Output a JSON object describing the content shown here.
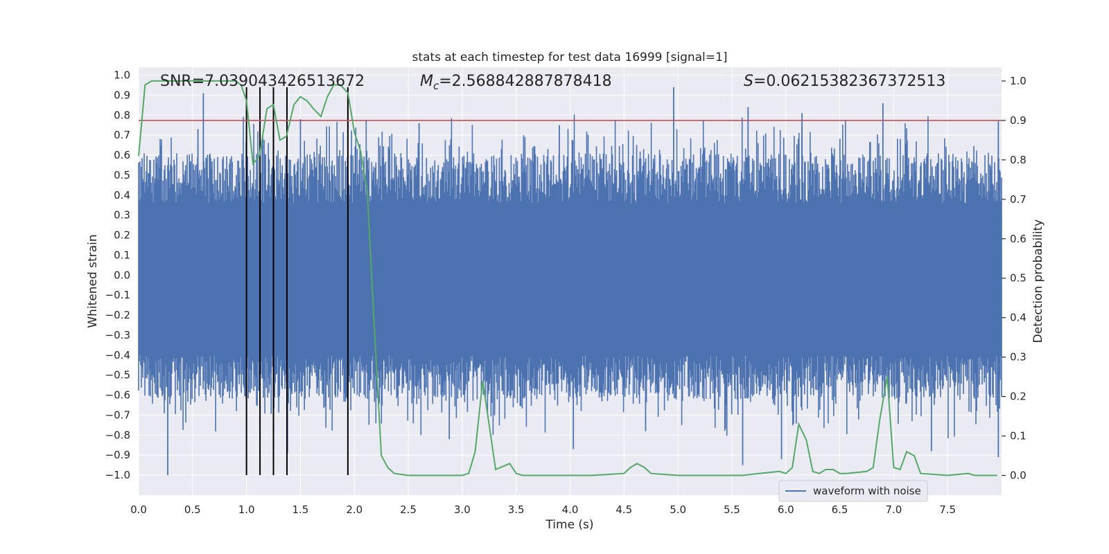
{
  "chart_data": {
    "type": "line",
    "title": "stats at each timestep for test data 16999 [signal=1]",
    "xlabel": "Time (s)",
    "ylabel": "Whitened strain",
    "y2label": "Detection probability",
    "xlim": [
      0.0,
      8.0
    ],
    "ylim": [
      -1.1,
      1.04
    ],
    "y2lim": [
      -0.05,
      1.035
    ],
    "xticks": [
      0.0,
      0.5,
      1.0,
      1.5,
      2.0,
      2.5,
      3.0,
      3.5,
      4.0,
      4.5,
      5.0,
      5.5,
      6.0,
      6.5,
      7.0,
      7.5
    ],
    "xtick_labels": [
      "0.0",
      "0.5",
      "1.0",
      "1.5",
      "2.0",
      "2.5",
      "3.0",
      "3.5",
      "4.0",
      "4.5",
      "5.0",
      "5.5",
      "6.0",
      "6.5",
      "7.0",
      "7.5"
    ],
    "yticks": [
      1.0,
      0.9,
      0.8,
      0.7,
      0.6,
      0.5,
      0.4,
      0.3,
      0.2,
      0.1,
      0.0,
      -0.1,
      -0.2,
      -0.3,
      -0.4,
      -0.5,
      -0.6,
      -0.7,
      -0.8,
      -0.9,
      -1.0
    ],
    "ytick_labels": [
      "1.0",
      "0.9",
      "0.8",
      "0.7",
      "0.6",
      "0.5",
      "0.4",
      "0.3",
      "0.2",
      "0.1",
      "0.0",
      "−0.1",
      "−0.2",
      "−0.3",
      "−0.4",
      "−0.5",
      "−0.6",
      "−0.7",
      "−0.8",
      "−0.9",
      "−1.0"
    ],
    "y2ticks": [
      1.0,
      0.9,
      0.8,
      0.7,
      0.6,
      0.5,
      0.4,
      0.3,
      0.2,
      0.1,
      0.0
    ],
    "y2tick_labels": [
      "1.0",
      "0.9",
      "0.8",
      "0.7",
      "0.6",
      "0.5",
      "0.4",
      "0.3",
      "0.2",
      "0.1",
      "0.0"
    ],
    "annotations": {
      "snr": "SNR=7.039043426513672",
      "mc_symbol": "M",
      "mc_sub": "c",
      "mc_value": "=2.568842887878418",
      "s_symbol": "S",
      "s_value": "=0.06215382367372513"
    },
    "legend": {
      "label": "waveform with noise",
      "position": "lower-right"
    },
    "threshold": 0.9,
    "event_lines": [
      1.0,
      1.125,
      1.25,
      1.375,
      1.94
    ],
    "event_line_range": [
      -1.0,
      0.94
    ],
    "waveform": {
      "name": "waveform with noise",
      "t_start": 0.0,
      "t_end": 8.0,
      "envelope_max": 0.36,
      "envelope_min": -0.4,
      "spikes": [
        [
          0.27,
          -1.0
        ],
        [
          0.6,
          0.91
        ],
        [
          1.38,
          -0.89
        ],
        [
          2.88,
          -0.82
        ],
        [
          4.03,
          -0.87
        ],
        [
          4.96,
          0.94
        ],
        [
          5.6,
          -0.95
        ],
        [
          5.65,
          0.84
        ],
        [
          5.96,
          -0.92
        ],
        [
          6.9,
          0.86
        ],
        [
          7.35,
          -0.88
        ],
        [
          7.97,
          0.77
        ],
        [
          7.97,
          -0.91
        ],
        [
          3.9,
          0.75
        ],
        [
          2.6,
          0.76
        ],
        [
          1.5,
          0.78
        ],
        [
          6.15,
          0.81
        ],
        [
          0.55,
          0.73
        ],
        [
          3.3,
          -0.7
        ],
        [
          4.7,
          -0.78
        ]
      ]
    },
    "detection_probability": {
      "x": [
        0.0,
        0.06,
        0.12,
        0.2,
        0.3,
        0.5,
        0.7,
        0.9,
        0.95,
        1.0,
        1.06,
        1.12,
        1.19,
        1.25,
        1.31,
        1.37,
        1.44,
        1.5,
        1.56,
        1.62,
        1.69,
        1.75,
        1.81,
        1.87,
        1.94,
        2.0,
        2.06,
        2.12,
        2.18,
        2.25,
        2.31,
        2.37,
        2.5,
        2.8,
        3.0,
        3.06,
        3.12,
        3.19,
        3.31,
        3.44,
        3.5,
        3.56,
        3.8,
        4.2,
        4.5,
        4.56,
        4.62,
        4.69,
        4.75,
        5.0,
        5.2,
        5.6,
        5.75,
        5.94,
        6.0,
        6.06,
        6.12,
        6.19,
        6.25,
        6.31,
        6.37,
        6.44,
        6.5,
        6.56,
        6.75,
        6.81,
        6.87,
        6.94,
        7.0,
        7.06,
        7.12,
        7.19,
        7.25,
        7.5,
        7.69,
        7.75,
        7.96
      ],
      "y": [
        0.81,
        0.99,
        1.0,
        1.0,
        1.0,
        1.0,
        1.0,
        1.0,
        0.99,
        0.95,
        0.79,
        0.81,
        0.93,
        0.94,
        0.85,
        0.86,
        0.94,
        0.96,
        0.95,
        0.93,
        0.91,
        0.96,
        0.99,
        0.99,
        0.97,
        0.87,
        0.82,
        0.72,
        0.4,
        0.05,
        0.02,
        0.005,
        0.0,
        0.0,
        0.0,
        0.005,
        0.06,
        0.24,
        0.015,
        0.03,
        0.005,
        0.0,
        0.0,
        0.0,
        0.005,
        0.02,
        0.03,
        0.02,
        0.005,
        0.0,
        0.0,
        0.0,
        0.005,
        0.01,
        0.005,
        0.02,
        0.13,
        0.09,
        0.01,
        0.005,
        0.015,
        0.015,
        0.005,
        0.005,
        0.01,
        0.02,
        0.14,
        0.25,
        0.02,
        0.015,
        0.06,
        0.05,
        0.005,
        0.0,
        0.005,
        0.0,
        0.0
      ]
    }
  },
  "colors": {
    "plot_bg": "#eaeaf2",
    "grid": "#ffffff",
    "waveform": "#4c72b0",
    "probability": "#55a868",
    "threshold": "#c44e52",
    "event_lines": "#000000"
  }
}
